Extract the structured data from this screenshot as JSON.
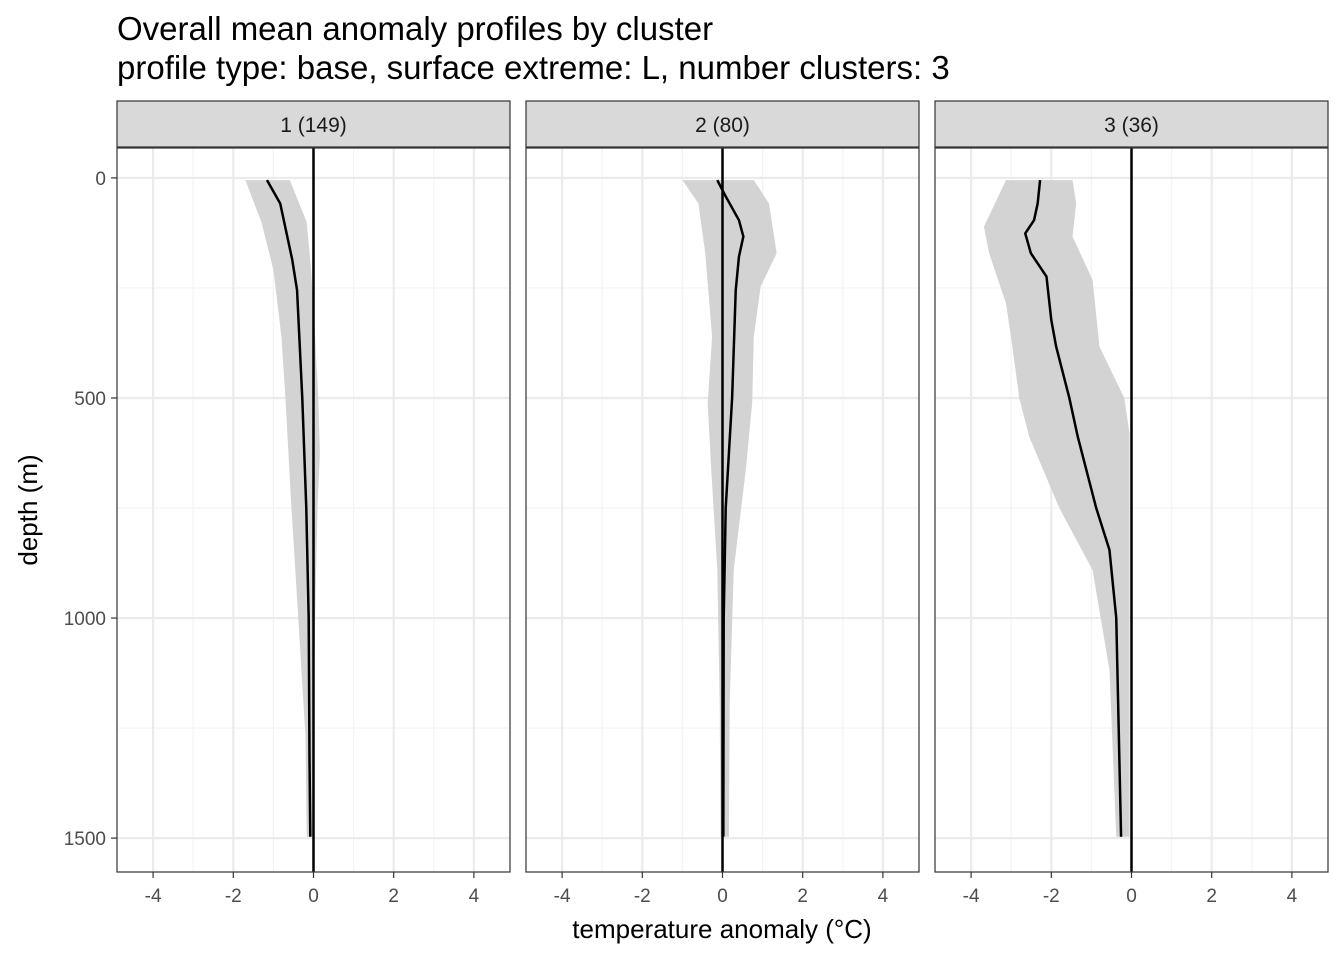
{
  "chart_data": {
    "type": "line",
    "title": "Overall mean anomaly profiles by cluster",
    "subtitle": "profile type: base, surface extreme: L, number clusters: 3",
    "xlabel": "temperature anomaly (°C)",
    "ylabel": "depth (m)",
    "xlim": [
      -4.9,
      4.9
    ],
    "ylim": [
      1577,
      -68
    ],
    "y_reversed": true,
    "x_ticks": [
      -4,
      -2,
      0,
      2,
      4
    ],
    "y_ticks": [
      0,
      500,
      1000,
      1500
    ],
    "grid": true,
    "reference_line_x": 0,
    "colors": {
      "mean": "#000000",
      "ribbon": "#d3d3d3",
      "strip": "#d9d9d9",
      "grid": "#ebebeb"
    },
    "panels": [
      {
        "label": "1 (149)",
        "mean": [
          [
            5,
            -1.16
          ],
          [
            58,
            -0.83
          ],
          [
            186,
            -0.53
          ],
          [
            255,
            -0.41
          ],
          [
            500,
            -0.28
          ],
          [
            750,
            -0.18
          ],
          [
            1000,
            -0.12
          ],
          [
            1315,
            -0.1
          ],
          [
            1497,
            -0.08
          ]
        ],
        "lower": [
          [
            5,
            -1.7
          ],
          [
            100,
            -1.3
          ],
          [
            209,
            -1.0
          ],
          [
            361,
            -0.8
          ],
          [
            500,
            -0.7
          ],
          [
            750,
            -0.55
          ],
          [
            1000,
            -0.38
          ],
          [
            1270,
            -0.2
          ],
          [
            1497,
            -0.17
          ]
        ],
        "upper": [
          [
            5,
            -0.59
          ],
          [
            100,
            -0.17
          ],
          [
            209,
            -0.06
          ],
          [
            361,
            0.04
          ],
          [
            500,
            0.12
          ],
          [
            625,
            0.16
          ],
          [
            750,
            0.1
          ],
          [
            1000,
            0.04
          ],
          [
            1270,
            0
          ],
          [
            1497,
            0
          ]
        ]
      },
      {
        "label": "2 (80)",
        "mean": [
          [
            5,
            -0.13
          ],
          [
            42,
            0.08
          ],
          [
            96,
            0.41
          ],
          [
            133,
            0.52
          ],
          [
            179,
            0.41
          ],
          [
            255,
            0.33
          ],
          [
            500,
            0.24
          ],
          [
            750,
            0.08
          ],
          [
            1000,
            0.03
          ],
          [
            1497,
            0.02
          ]
        ],
        "lower": [
          [
            5,
            -1.0
          ],
          [
            58,
            -0.6
          ],
          [
            171,
            -0.43
          ],
          [
            361,
            -0.26
          ],
          [
            512,
            -0.37
          ],
          [
            664,
            -0.28
          ],
          [
            891,
            -0.13
          ],
          [
            1194,
            -0.07
          ],
          [
            1497,
            -0.05
          ]
        ],
        "upper": [
          [
            5,
            0.78
          ],
          [
            58,
            1.16
          ],
          [
            171,
            1.35
          ],
          [
            247,
            0.95
          ],
          [
            361,
            0.78
          ],
          [
            512,
            0.74
          ],
          [
            664,
            0.58
          ],
          [
            891,
            0.28
          ],
          [
            1194,
            0.18
          ],
          [
            1497,
            0.16
          ]
        ]
      },
      {
        "label": "3 (36)",
        "mean": [
          [
            5,
            -2.28
          ],
          [
            58,
            -2.34
          ],
          [
            96,
            -2.43
          ],
          [
            126,
            -2.65
          ],
          [
            171,
            -2.51
          ],
          [
            224,
            -2.12
          ],
          [
            323,
            -2.0
          ],
          [
            383,
            -1.88
          ],
          [
            500,
            -1.55
          ],
          [
            588,
            -1.34
          ],
          [
            750,
            -0.88
          ],
          [
            845,
            -0.55
          ],
          [
            1000,
            -0.38
          ],
          [
            1497,
            -0.26
          ]
        ],
        "lower": [
          [
            5,
            -3.13
          ],
          [
            111,
            -3.68
          ],
          [
            171,
            -3.55
          ],
          [
            285,
            -3.13
          ],
          [
            383,
            -2.97
          ],
          [
            500,
            -2.8
          ],
          [
            588,
            -2.55
          ],
          [
            750,
            -1.8
          ],
          [
            891,
            -0.97
          ],
          [
            1118,
            -0.55
          ],
          [
            1497,
            -0.38
          ]
        ],
        "upper": [
          [
            5,
            -1.47
          ],
          [
            58,
            -1.38
          ],
          [
            133,
            -1.47
          ],
          [
            232,
            -0.97
          ],
          [
            383,
            -0.8
          ],
          [
            500,
            -0.18
          ],
          [
            580,
            -0.05
          ],
          [
            1497,
            -0.05
          ]
        ]
      }
    ]
  }
}
